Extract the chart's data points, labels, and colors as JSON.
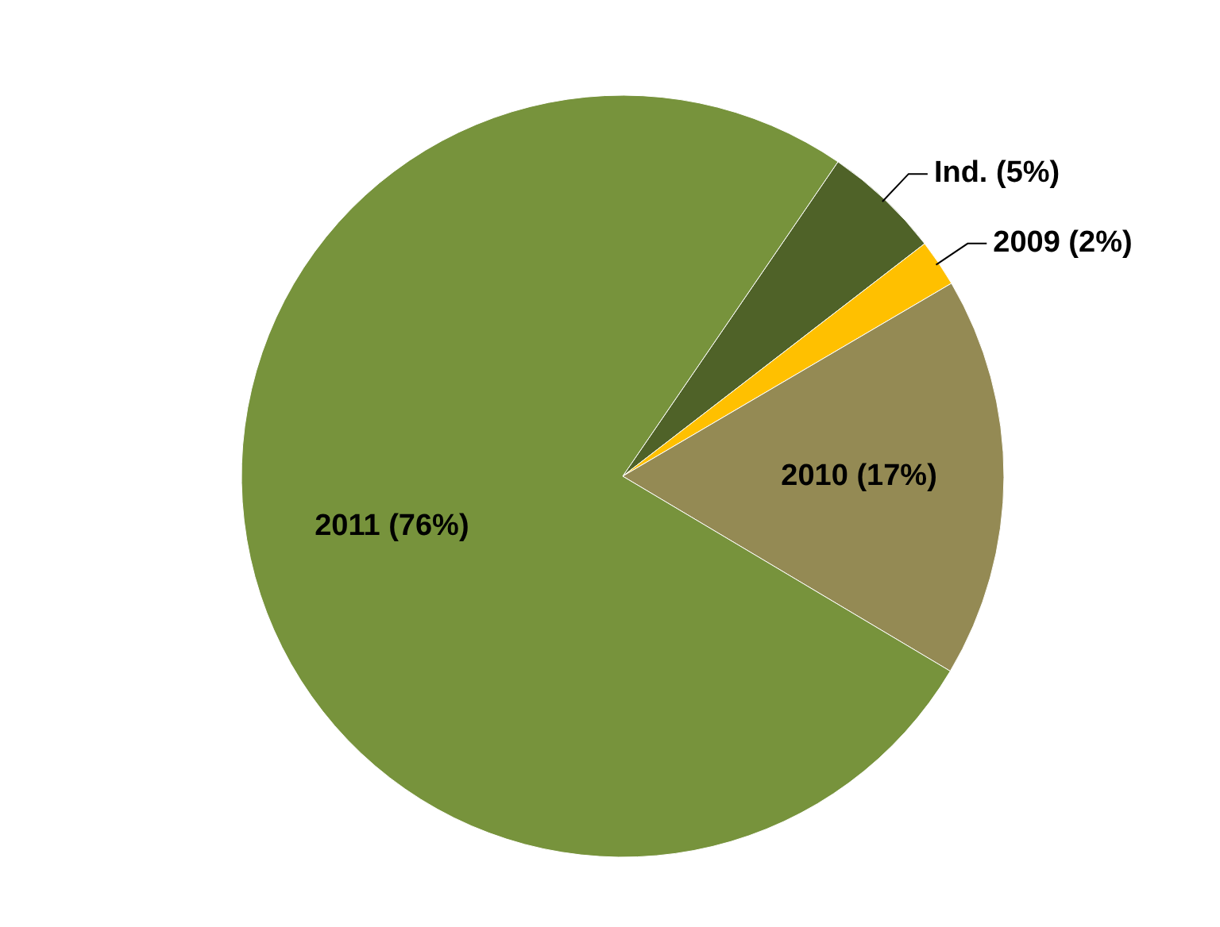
{
  "chart_data": {
    "type": "pie",
    "categories": [
      "Ind.",
      "2009",
      "2010",
      "2011"
    ],
    "values": [
      5,
      2,
      17,
      76
    ],
    "value_labels": [
      "(5%)",
      "(2%)",
      "(17%)",
      "(76%)"
    ],
    "colors": [
      "#4f6228",
      "#ffc000",
      "#948a54",
      "#77933c"
    ]
  }
}
